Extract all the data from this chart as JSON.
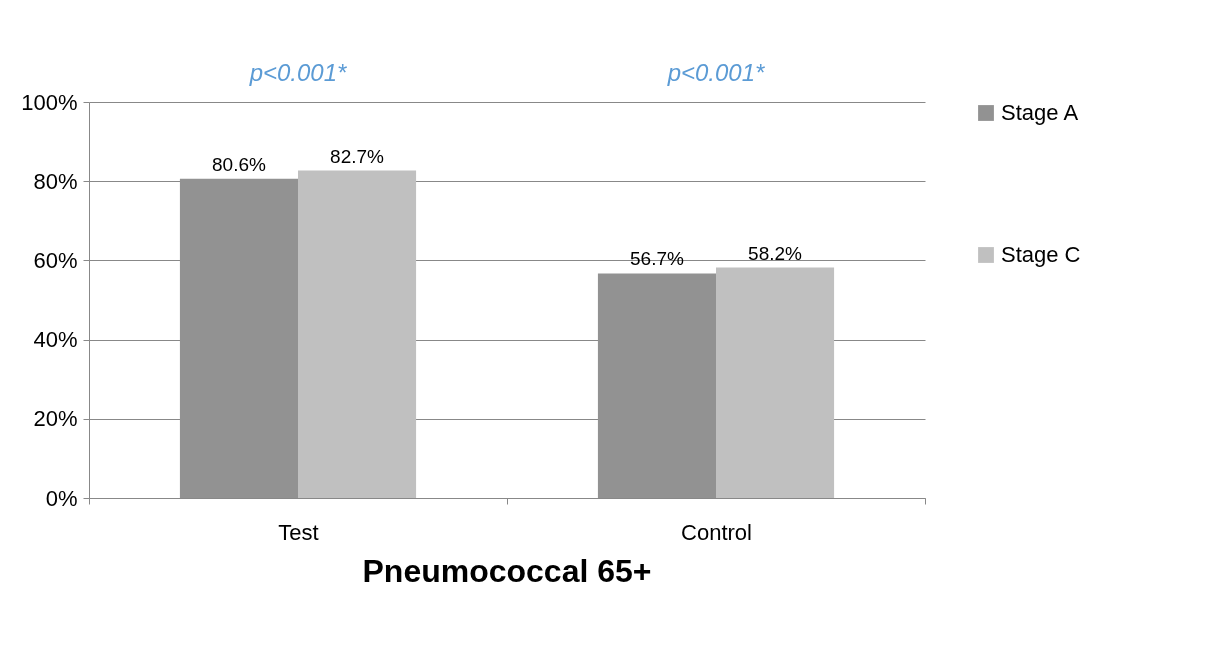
{
  "chart_data": {
    "type": "bar",
    "title": "Pneumococcal 65+",
    "categories": [
      "Test",
      "Control"
    ],
    "series": [
      {
        "name": "Stage A",
        "color": "#929292",
        "values": [
          80.6,
          56.7
        ],
        "value_labels": [
          "80.6%",
          "56.7%"
        ]
      },
      {
        "name": "Stage C",
        "color": "#c0c0c0",
        "values": [
          82.7,
          58.2
        ],
        "value_labels": [
          "82.7%",
          "58.2%"
        ]
      }
    ],
    "ylim": [
      0,
      100
    ],
    "yticks": [
      {
        "value": 0,
        "label": "0%"
      },
      {
        "value": 20,
        "label": "20%"
      },
      {
        "value": 40,
        "label": "40%"
      },
      {
        "value": 60,
        "label": "60%"
      },
      {
        "value": 80,
        "label": "80%"
      },
      {
        "value": 100,
        "label": "100%"
      }
    ],
    "annotations": [
      "p<0.001*",
      "p<0.001*"
    ],
    "grid": "y",
    "legend": "right"
  }
}
